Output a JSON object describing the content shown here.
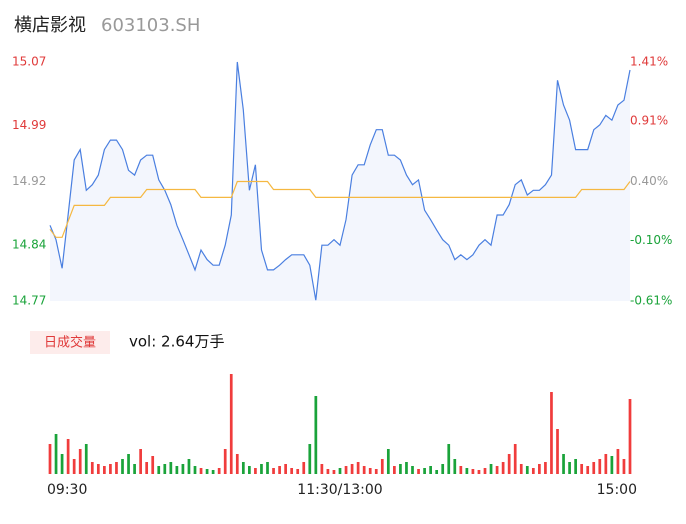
{
  "chart_data": {
    "type": "intraday",
    "title": "横店影视",
    "subtitle": "603103.SH",
    "categories": [
      "09:30",
      null,
      null,
      null,
      null,
      null,
      null,
      null,
      null,
      null,
      null,
      null,
      null,
      null,
      null,
      null,
      null,
      null,
      null,
      null,
      null,
      null,
      null,
      null,
      null,
      null,
      null,
      null,
      null,
      null,
      null,
      null,
      null,
      null,
      null,
      null,
      null,
      null,
      null,
      null,
      null,
      null,
      null,
      null,
      null,
      null,
      null,
      null,
      "11:30/13:00",
      null,
      null,
      null,
      null,
      null,
      null,
      null,
      null,
      null,
      null,
      null,
      null,
      null,
      null,
      null,
      null,
      null,
      null,
      null,
      null,
      null,
      null,
      null,
      null,
      null,
      null,
      null,
      null,
      null,
      null,
      null,
      null,
      null,
      null,
      null,
      null,
      null,
      null,
      null,
      null,
      null,
      null,
      null,
      null,
      null,
      null,
      null,
      "15:00"
    ],
    "series": [
      {
        "name": "price",
        "color": "#4a7fe0",
        "values": [
          14.865,
          14.847,
          14.811,
          14.878,
          14.947,
          14.96,
          14.909,
          14.916,
          14.928,
          14.96,
          14.972,
          14.972,
          14.96,
          14.934,
          14.928,
          14.947,
          14.953,
          14.953,
          14.922,
          14.909,
          14.891,
          14.865,
          14.847,
          14.828,
          14.809,
          14.834,
          14.822,
          14.815,
          14.815,
          14.84,
          14.878,
          15.07,
          15.01,
          14.909,
          14.941,
          14.834,
          14.809,
          14.809,
          14.815,
          14.822,
          14.828,
          14.828,
          14.828,
          14.815,
          14.771,
          14.84,
          14.84,
          14.847,
          14.84,
          14.872,
          14.928,
          14.941,
          14.941,
          14.966,
          14.985,
          14.985,
          14.953,
          14.953,
          14.947,
          14.928,
          14.916,
          14.922,
          14.884,
          14.872,
          14.859,
          14.847,
          14.84,
          14.822,
          14.828,
          14.822,
          14.828,
          14.84,
          14.847,
          14.84,
          14.878,
          14.878,
          14.891,
          14.916,
          14.922,
          14.903,
          14.909,
          14.909,
          14.916,
          14.928,
          15.047,
          15.016,
          14.997,
          14.96,
          14.96,
          14.96,
          14.985,
          14.991,
          15.003,
          14.997,
          15.016,
          15.022,
          15.06
        ]
      },
      {
        "name": "average",
        "color": "#f5b841",
        "values": [
          14.86,
          14.85,
          14.85,
          14.87,
          14.89,
          14.89,
          14.89,
          14.89,
          14.89,
          14.89,
          14.9,
          14.9,
          14.9,
          14.9,
          14.9,
          14.9,
          14.91,
          14.91,
          14.91,
          14.91,
          14.91,
          14.91,
          14.91,
          14.91,
          14.91,
          14.9,
          14.9,
          14.9,
          14.9,
          14.9,
          14.9,
          14.92,
          14.92,
          14.92,
          14.92,
          14.92,
          14.92,
          14.91,
          14.91,
          14.91,
          14.91,
          14.91,
          14.91,
          14.91,
          14.9,
          14.9,
          14.9,
          14.9,
          14.9,
          14.9,
          14.9,
          14.9,
          14.9,
          14.9,
          14.9,
          14.9,
          14.9,
          14.9,
          14.9,
          14.9,
          14.9,
          14.9,
          14.9,
          14.9,
          14.9,
          14.9,
          14.9,
          14.9,
          14.9,
          14.9,
          14.9,
          14.9,
          14.9,
          14.9,
          14.9,
          14.9,
          14.9,
          14.9,
          14.9,
          14.9,
          14.9,
          14.9,
          14.9,
          14.9,
          14.9,
          14.9,
          14.9,
          14.9,
          14.91,
          14.91,
          14.91,
          14.91,
          14.91,
          14.91,
          14.91,
          14.91,
          14.92
        ]
      }
    ],
    "volume": {
      "label": "日成交量",
      "text": "vol: 2.64万手",
      "up_color": "#f03c3c",
      "down_color": "#1aa33a",
      "ylim": [
        0,
        100
      ],
      "values": [
        30,
        40,
        20,
        35,
        15,
        25,
        30,
        12,
        10,
        8,
        10,
        12,
        15,
        20,
        10,
        25,
        12,
        18,
        8,
        10,
        12,
        8,
        10,
        15,
        8,
        6,
        5,
        4,
        6,
        25,
        100,
        20,
        12,
        8,
        6,
        10,
        12,
        6,
        8,
        10,
        6,
        5,
        12,
        30,
        78,
        10,
        5,
        4,
        6,
        8,
        10,
        12,
        8,
        6,
        5,
        15,
        25,
        8,
        10,
        12,
        8,
        5,
        6,
        8,
        4,
        10,
        30,
        15,
        8,
        6,
        5,
        4,
        6,
        10,
        8,
        12,
        20,
        30,
        10,
        8,
        6,
        10,
        12,
        82,
        45,
        20,
        12,
        15,
        10,
        8,
        12,
        15,
        20,
        18,
        25,
        15,
        75
      ]
    },
    "ylim": [
      14.77,
      15.07
    ],
    "yticks": [
      15.07,
      14.99,
      14.92,
      14.84,
      14.77
    ],
    "y2lim": [
      -0.61,
      1.41
    ],
    "y2ticks": [
      {
        "value": 1.41,
        "label": "1.41%"
      },
      {
        "value": 0.91,
        "label": "0.91%"
      },
      {
        "value": 0.4,
        "label": "0.40%"
      },
      {
        "value": -0.1,
        "label": "-0.10%"
      },
      {
        "value": -0.61,
        "label": "-0.61%"
      }
    ]
  }
}
